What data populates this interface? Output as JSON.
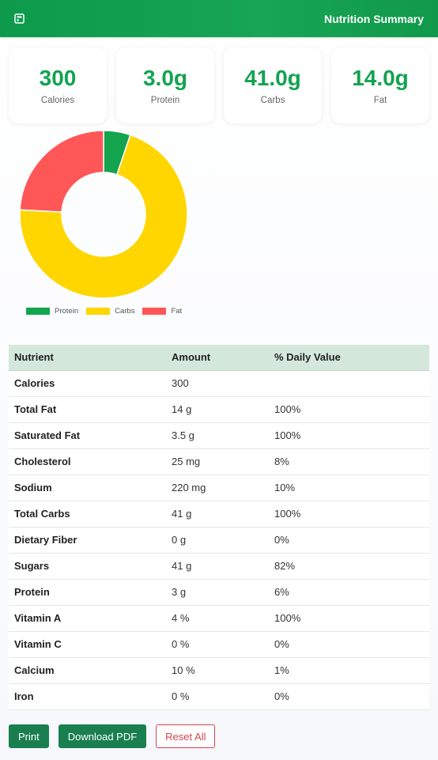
{
  "header": {
    "title": "Nutrition Summary",
    "icon": "report-icon"
  },
  "summary_cards": [
    {
      "value": "300",
      "label": "Calories"
    },
    {
      "value": "3.0g",
      "label": "Protein"
    },
    {
      "value": "41.0g",
      "label": "Carbs"
    },
    {
      "value": "14.0g",
      "label": "Fat"
    }
  ],
  "chart_data": {
    "type": "pie",
    "categories": [
      "Protein",
      "Carbs",
      "Fat"
    ],
    "values": [
      3.0,
      41.0,
      14.0
    ],
    "colors": [
      "#14a44d",
      "#ffd600",
      "#ff5757"
    ],
    "legend_position": "bottom-left"
  },
  "table": {
    "headers": [
      "Nutrient",
      "Amount",
      "% Daily Value"
    ],
    "rows": [
      [
        "Calories",
        "300",
        ""
      ],
      [
        "Total Fat",
        "14 g",
        "100%"
      ],
      [
        "Saturated Fat",
        "3.5 g",
        "100%"
      ],
      [
        "Cholesterol",
        "25 mg",
        "8%"
      ],
      [
        "Sodium",
        "220 mg",
        "10%"
      ],
      [
        "Total Carbs",
        "41 g",
        "100%"
      ],
      [
        "Dietary Fiber",
        "0 g",
        "0%"
      ],
      [
        "Sugars",
        "41 g",
        "82%"
      ],
      [
        "Protein",
        "3 g",
        "6%"
      ],
      [
        "Vitamin A",
        "4 %",
        "100%"
      ],
      [
        "Vitamin C",
        "0 %",
        "0%"
      ],
      [
        "Calcium",
        "10 %",
        "1%"
      ],
      [
        "Iron",
        "0 %",
        "0%"
      ]
    ]
  },
  "actions": {
    "print": "Print",
    "download": "Download PDF",
    "reset": "Reset All"
  }
}
